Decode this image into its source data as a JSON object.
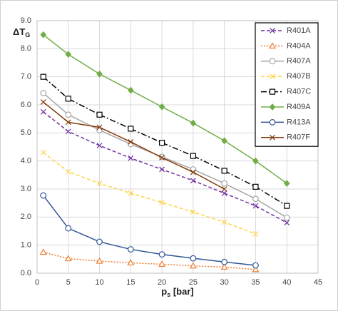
{
  "chart_data": {
    "type": "line",
    "ylabel": {
      "main": "ΔT",
      "sub": "G"
    },
    "xlabel": {
      "main": "p",
      "sub": "s",
      "rest": " [bar]"
    },
    "xlim": [
      0,
      45
    ],
    "xticks": [
      0,
      5,
      10,
      15,
      20,
      25,
      30,
      35,
      40,
      45
    ],
    "ylim": [
      0,
      9
    ],
    "yticks": [
      {
        "value": 0,
        "label": "0.0"
      },
      {
        "value": 1,
        "label": "1.0"
      },
      {
        "value": 2,
        "label": "2.0"
      },
      {
        "value": 3,
        "label": "3.0"
      },
      {
        "value": 4,
        "label": "4.0"
      },
      {
        "value": 5,
        "label": "5.0"
      },
      {
        "value": 6,
        "label": "6.0"
      },
      {
        "value": 7,
        "label": "7.0"
      },
      {
        "value": 8,
        "label": "8.0"
      },
      {
        "value": 9,
        "label": "9.0"
      }
    ],
    "grid": true,
    "legend": "top-right",
    "series": [
      {
        "name": "R401A",
        "color": "#7030a0",
        "dash": "dash",
        "marker": "cross",
        "x": [
          1,
          5,
          10,
          15,
          20,
          25,
          30,
          35,
          40
        ],
        "values": [
          5.75,
          5.05,
          4.55,
          4.1,
          3.7,
          3.3,
          2.85,
          2.4,
          1.8
        ]
      },
      {
        "name": "R404A",
        "color": "#ed7d31",
        "dash": "dot",
        "marker": "triangle",
        "x": [
          1,
          5,
          10,
          15,
          20,
          25,
          30,
          35
        ],
        "values": [
          0.75,
          0.52,
          0.43,
          0.37,
          0.32,
          0.26,
          0.22,
          0.13
        ]
      },
      {
        "name": "R407A",
        "color": "#a5a5a5",
        "dash": "solid",
        "marker": "circle",
        "x": [
          1,
          5,
          10,
          15,
          20,
          25,
          30,
          35,
          40
        ],
        "values": [
          6.42,
          5.65,
          5.1,
          4.6,
          4.15,
          3.7,
          3.2,
          2.65,
          1.98
        ]
      },
      {
        "name": "R407B",
        "color": "#ffd34d",
        "dash": "dash",
        "marker": "cross",
        "x": [
          1,
          5,
          10,
          15,
          20,
          25,
          30,
          35
        ],
        "values": [
          4.3,
          3.62,
          3.2,
          2.85,
          2.52,
          2.18,
          1.82,
          1.4
        ]
      },
      {
        "name": "R407C",
        "color": "#000000",
        "dash": "dashdot",
        "marker": "square",
        "x": [
          1,
          5,
          10,
          15,
          20,
          25,
          30,
          35,
          40
        ],
        "values": [
          7.0,
          6.22,
          5.65,
          5.15,
          4.65,
          4.18,
          3.65,
          3.08,
          2.4
        ]
      },
      {
        "name": "R409A",
        "color": "#70ad47",
        "dash": "solid",
        "marker": "diamond",
        "x": [
          1,
          5,
          10,
          15,
          20,
          25,
          30,
          35,
          40
        ],
        "values": [
          8.5,
          7.8,
          7.1,
          6.52,
          5.93,
          5.35,
          4.72,
          4.0,
          3.2
        ]
      },
      {
        "name": "R413A",
        "color": "#2f5597",
        "dash": "solid",
        "marker": "circle",
        "x": [
          1,
          5,
          10,
          15,
          20,
          25,
          30,
          35
        ],
        "values": [
          2.77,
          1.6,
          1.12,
          0.85,
          0.67,
          0.53,
          0.4,
          0.28
        ]
      },
      {
        "name": "R407F",
        "color": "#843c0c",
        "dash": "solid",
        "marker": "cross",
        "x": [
          1,
          5,
          10,
          15,
          20,
          25,
          30
        ],
        "values": [
          6.1,
          5.38,
          5.2,
          4.68,
          4.12,
          3.6,
          3.0
        ]
      }
    ]
  }
}
